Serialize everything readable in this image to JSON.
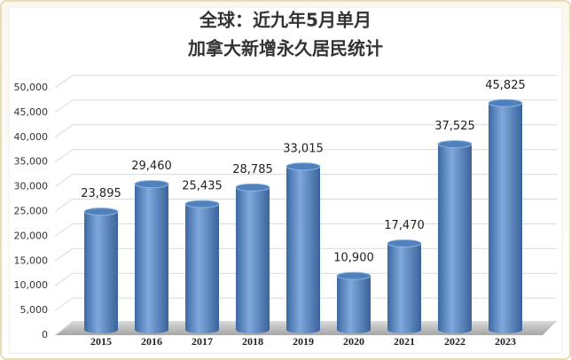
{
  "chart_data": {
    "type": "bar",
    "title": "全球：近九年5月单月",
    "subtitle": "加拿大新增永久居民统计",
    "categories": [
      "2015",
      "2016",
      "2017",
      "2018",
      "2019",
      "2020",
      "2021",
      "2022",
      "2023"
    ],
    "values": [
      23895,
      29460,
      25435,
      28785,
      33015,
      10900,
      17470,
      37525,
      45825
    ],
    "value_labels": [
      "23,895",
      "29,460",
      "25,435",
      "28,785",
      "33,015",
      "10,900",
      "17,470",
      "37,525",
      "45,825"
    ],
    "color": "#4f81bd",
    "ylim": [
      0,
      50000
    ],
    "yticks": [
      0,
      {
        "value": 5000,
        "label": "5,000"
      },
      {
        "value": 10000,
        "label": "10,000"
      },
      {
        "value": 15000,
        "label": "15,000"
      },
      {
        "value": 20000,
        "label": "20,000"
      },
      {
        "value": 25000,
        "label": "25,000"
      },
      {
        "value": 30000,
        "label": "30,000"
      },
      {
        "value": 35000,
        "label": "35,000"
      },
      {
        "value": 40000,
        "label": "40,000"
      },
      {
        "value": 45000,
        "label": "45,000"
      },
      {
        "value": 50000,
        "label": "50,000"
      }
    ],
    "grid": true
  }
}
